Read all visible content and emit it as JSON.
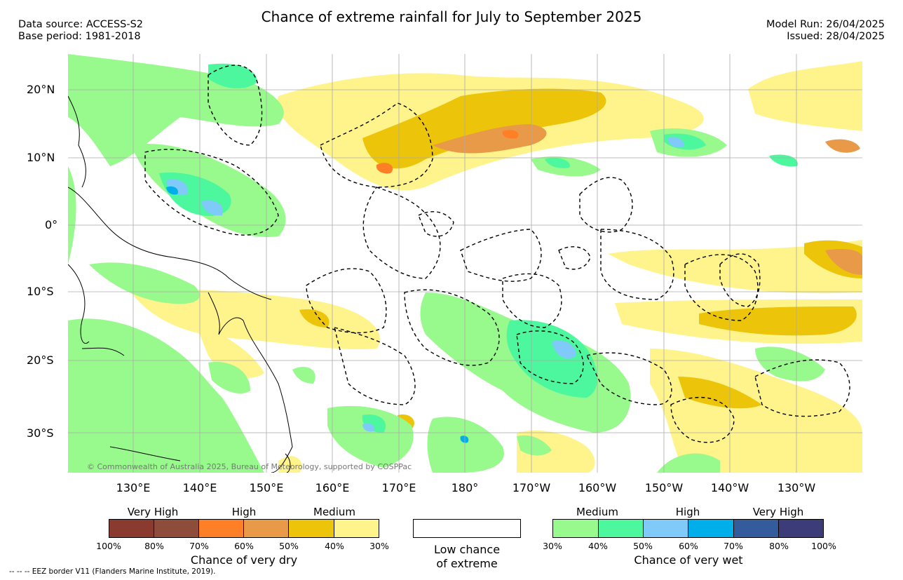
{
  "title": "Chance of extreme rainfall for July to September 2025",
  "header_left": [
    "Data source: ACCESS-S2",
    "Base period: 1981-2018"
  ],
  "header_right": [
    "Model Run: 26/04/2025",
    "Issued: 28/04/2025"
  ],
  "latitude_labels": [
    "20°N",
    "10°N",
    "0°",
    "10°S",
    "20°S",
    "30°S"
  ],
  "longitude_labels": [
    "130°E",
    "140°E",
    "150°E",
    "160°E",
    "170°E",
    "180°",
    "170°W",
    "160°W",
    "150°W",
    "140°W",
    "130°W"
  ],
  "credit": "© Commonwealth of Australia 2025, Bureau of Meteorology, supported by COSPPac",
  "legend": {
    "dry": {
      "headings": [
        "Very High",
        "High",
        "Medium"
      ],
      "ticks": [
        "100%",
        "80%",
        "70%",
        "60%",
        "50%",
        "40%",
        "30%"
      ],
      "colors": [
        "#8b3a2f",
        "#8e4d3a",
        "#ff7f27",
        "#e89a48",
        "#ecc50a",
        "#fff48c"
      ],
      "title": "Chance of very dry"
    },
    "low": {
      "line1": "Low chance",
      "line2": "of extreme"
    },
    "wet": {
      "headings": [
        "Medium",
        "High",
        "Very High"
      ],
      "ticks": [
        "30%",
        "40%",
        "50%",
        "60%",
        "70%",
        "80%",
        "100%"
      ],
      "colors": [
        "#98f98c",
        "#4cf79d",
        "#80cafa",
        "#00aee9",
        "#345b9b",
        "#3c3c79"
      ],
      "title": "Chance of very wet"
    }
  },
  "footer": "--  --  -- EEZ border V11 (Flanders Marine Institute, 2019)."
}
